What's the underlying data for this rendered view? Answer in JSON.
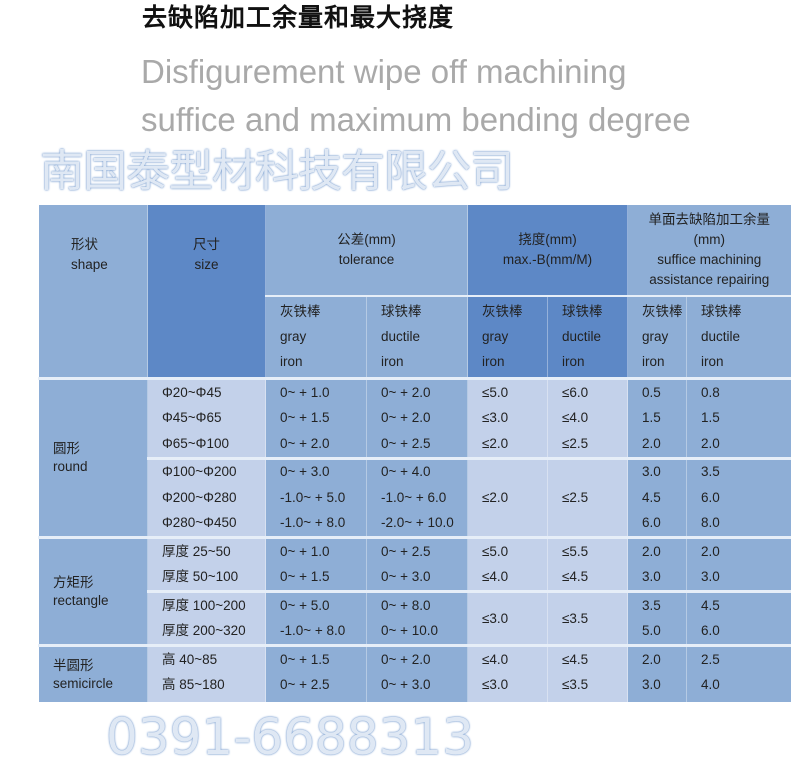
{
  "title_cn": "去缺陷加工余量和最大挠度",
  "title_en_line1": "Disfigurement wipe off machining",
  "title_en_line2": "suffice and maximum bending degree",
  "watermark": {
    "company": "南国泰型材科技有限公司",
    "phone": "0391-6688313"
  },
  "header": {
    "shape": {
      "cn": "形状",
      "en": "shape"
    },
    "size": {
      "cn": "尺寸",
      "en": "size"
    },
    "tolerance": {
      "cn": "公差(mm)",
      "en": "tolerance"
    },
    "deflection": {
      "cn": "挠度(mm)",
      "en": "max.-B(mm/M)"
    },
    "repair": {
      "cn": "单面去缺陷加工余量",
      "unit": "(mm)",
      "en1": "suffice machining",
      "en2": "assistance repairing"
    },
    "gray": {
      "cn": "灰铁棒",
      "en1": "gray",
      "en2": "iron"
    },
    "ductile": {
      "cn": "球铁棒",
      "en1": "ductile",
      "en2": "iron"
    }
  },
  "groups": [
    {
      "cn": "圆形",
      "en": "round",
      "rows": [
        {
          "size": "Φ20~Φ45",
          "tg": "0~ + 1.0",
          "td": "0~ + 2.0",
          "dg": "≤5.0",
          "dd": "≤6.0",
          "rg": "0.5",
          "rd": "0.8"
        },
        {
          "size": "Φ45~Φ65",
          "tg": "0~ + 1.5",
          "td": "0~ + 2.0",
          "dg": "≤3.0",
          "dd": "≤4.0",
          "rg": "1.5",
          "rd": "1.5"
        },
        {
          "size": "Φ65~Φ100",
          "tg": "0~ + 2.0",
          "td": "0~ + 2.5",
          "dg": "≤2.0",
          "dd": "≤2.5",
          "rg": "2.0",
          "rd": "2.0"
        },
        {
          "sub": true,
          "size": "Φ100~Φ200",
          "tg": "0~ + 3.0",
          "td": "0~ + 4.0",
          "dg": "≤2.0",
          "dd": "≤2.5",
          "rg": "3.0",
          "rd": "3.5"
        },
        {
          "size": "Φ200~Φ280",
          "tg": "-1.0~ + 5.0",
          "td": "-1.0~ + 6.0",
          "dg": null,
          "dd": null,
          "rg": "4.5",
          "rd": "6.0"
        },
        {
          "size": "Φ280~Φ450",
          "tg": "-1.0~ + 8.0",
          "td": "-2.0~ + 10.0",
          "dg": null,
          "dd": null,
          "rg": "6.0",
          "rd": "8.0"
        }
      ]
    },
    {
      "cn": "方矩形",
      "en": "rectangle",
      "rows": [
        {
          "size": "厚度 25~50",
          "tg": "0~ + 1.0",
          "td": "0~ + 2.5",
          "dg": "≤5.0",
          "dd": "≤5.5",
          "rg": "2.0",
          "rd": "2.0"
        },
        {
          "size": "厚度 50~100",
          "tg": "0~ + 1.5",
          "td": "0~ + 3.0",
          "dg": "≤4.0",
          "dd": "≤4.5",
          "rg": "3.0",
          "rd": "3.0"
        },
        {
          "sub": true,
          "size": "厚度 100~200",
          "tg": "0~ + 5.0",
          "td": "0~ + 8.0",
          "dg": "≤3.0",
          "dd": "≤3.5",
          "rg": "3.5",
          "rd": "4.5"
        },
        {
          "size": "厚度 200~320",
          "tg": "-1.0~ + 8.0",
          "td": "0~ + 10.0",
          "dg": null,
          "dd": null,
          "rg": "5.0",
          "rd": "6.0"
        }
      ]
    },
    {
      "cn": "半圆形",
      "en": "semicircle",
      "rows": [
        {
          "size": "高 40~85",
          "tg": "0~ + 1.5",
          "td": "0~ + 2.0",
          "dg": "≤4.0",
          "dd": "≤4.5",
          "rg": "2.0",
          "rd": "2.5"
        },
        {
          "size": "高 85~180",
          "tg": "0~ + 2.5",
          "td": "0~ + 3.0",
          "dg": "≤3.0",
          "dd": "≤3.5",
          "rg": "3.0",
          "rd": "4.0"
        }
      ]
    }
  ]
}
